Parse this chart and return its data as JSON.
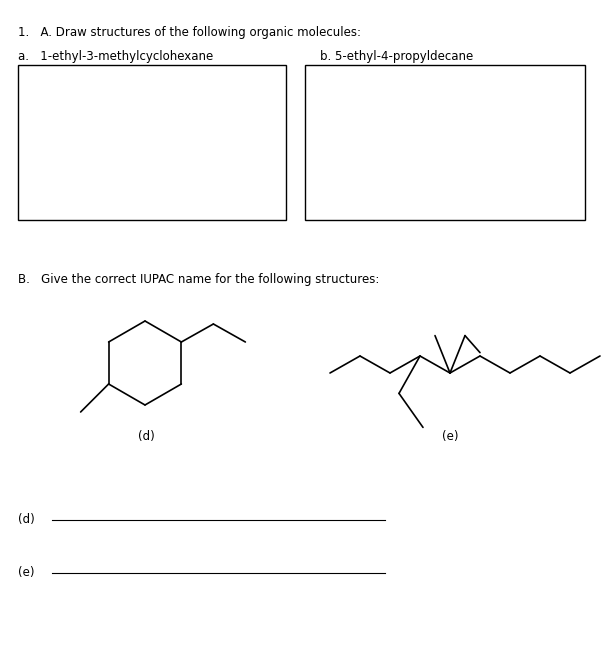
{
  "title_text": "1.   A. Draw structures of the following organic molecules:",
  "label_a": "a.   1-ethyl-3-methylcyclohexane",
  "label_b": "b. 5-ethyl-4-propyldecane",
  "label_B": "B.   Give the correct IUPAC name for the following structures:",
  "label_d": "(d)",
  "label_e": "(e)",
  "line_color": "#000000",
  "bg_color": "#ffffff"
}
